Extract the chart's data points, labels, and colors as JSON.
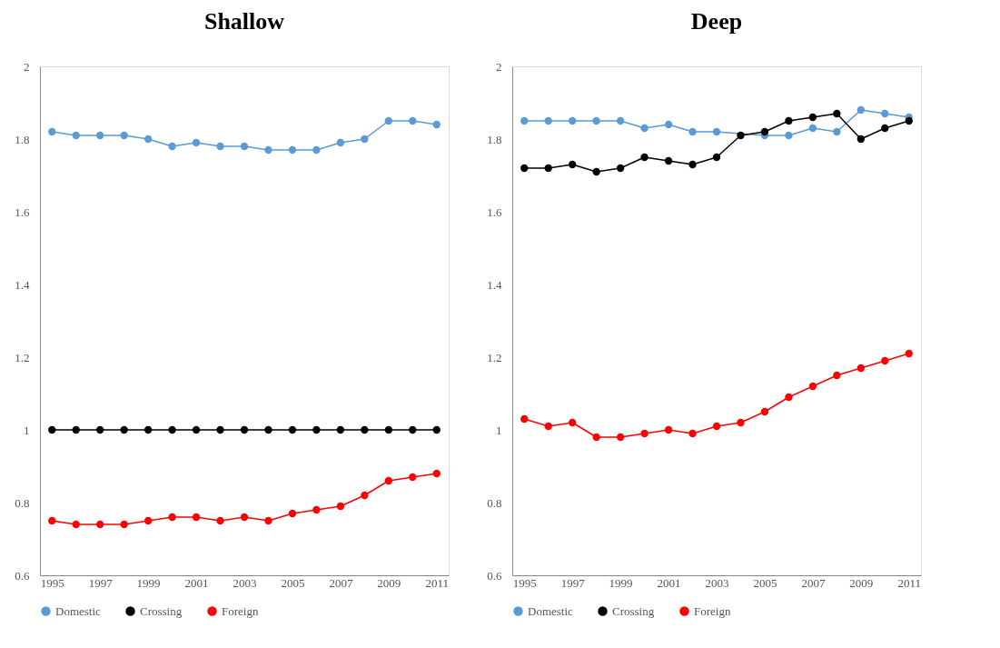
{
  "chart_data": [
    {
      "type": "line",
      "title": "Shallow",
      "x": [
        1995,
        1996,
        1997,
        1998,
        1999,
        2000,
        2001,
        2002,
        2003,
        2004,
        2005,
        2006,
        2007,
        2008,
        2009,
        2010,
        2011
      ],
      "xlim": [
        1994.5,
        2011.5
      ],
      "xticks": [
        1995,
        1997,
        1999,
        2001,
        2003,
        2005,
        2007,
        2009,
        2011
      ],
      "ylim": [
        0.6,
        2
      ],
      "yticks": [
        0.6,
        0.8,
        1,
        1.2,
        1.4,
        1.6,
        1.8,
        2
      ],
      "legend": "bottom",
      "marker": "circle",
      "line_style": "solid",
      "series": [
        {
          "name": "Domestic",
          "color": "#5b9bd5",
          "values": [
            1.82,
            1.81,
            1.81,
            1.81,
            1.8,
            1.78,
            1.79,
            1.78,
            1.78,
            1.77,
            1.77,
            1.77,
            1.79,
            1.8,
            1.85,
            1.85,
            1.84
          ]
        },
        {
          "name": "Crossing",
          "color": "#000000",
          "values": [
            1,
            1,
            1,
            1,
            1,
            1,
            1,
            1,
            1,
            1,
            1,
            1,
            1,
            1,
            1,
            1,
            1
          ]
        },
        {
          "name": "Foreign",
          "color": "#ff0000",
          "values": [
            0.75,
            0.74,
            0.74,
            0.74,
            0.75,
            0.76,
            0.76,
            0.75,
            0.76,
            0.75,
            0.77,
            0.78,
            0.79,
            0.82,
            0.86,
            0.87,
            0.88
          ]
        }
      ]
    },
    {
      "type": "line",
      "title": "Deep",
      "x": [
        1995,
        1996,
        1997,
        1998,
        1999,
        2000,
        2001,
        2002,
        2003,
        2004,
        2005,
        2006,
        2007,
        2008,
        2009,
        2010,
        2011
      ],
      "xlim": [
        1994.5,
        2011.5
      ],
      "xticks": [
        1995,
        1997,
        1999,
        2001,
        2003,
        2005,
        2007,
        2009,
        2011
      ],
      "ylim": [
        0.6,
        2
      ],
      "yticks": [
        0.6,
        0.8,
        1,
        1.2,
        1.4,
        1.6,
        1.8,
        2
      ],
      "legend": "bottom",
      "marker": "circle",
      "line_style": "solid",
      "series": [
        {
          "name": "Domestic",
          "color": "#5b9bd5",
          "values": [
            1.85,
            1.85,
            1.85,
            1.85,
            1.85,
            1.83,
            1.84,
            1.82,
            1.82,
            null,
            1.81,
            1.81,
            1.83,
            1.82,
            1.88,
            1.87,
            1.86
          ]
        },
        {
          "name": "Crossing",
          "color": "#000000",
          "values": [
            1.72,
            1.72,
            1.73,
            1.71,
            1.72,
            1.75,
            1.74,
            1.73,
            1.75,
            1.81,
            1.82,
            1.85,
            1.86,
            1.87,
            1.8,
            1.83,
            1.85
          ]
        },
        {
          "name": "Foreign",
          "color": "#ff0000",
          "values": [
            1.03,
            1.01,
            1.02,
            0.98,
            0.98,
            0.99,
            1.0,
            0.99,
            1.01,
            1.02,
            1.05,
            1.09,
            1.12,
            1.15,
            1.17,
            1.19,
            1.21
          ]
        }
      ]
    }
  ]
}
